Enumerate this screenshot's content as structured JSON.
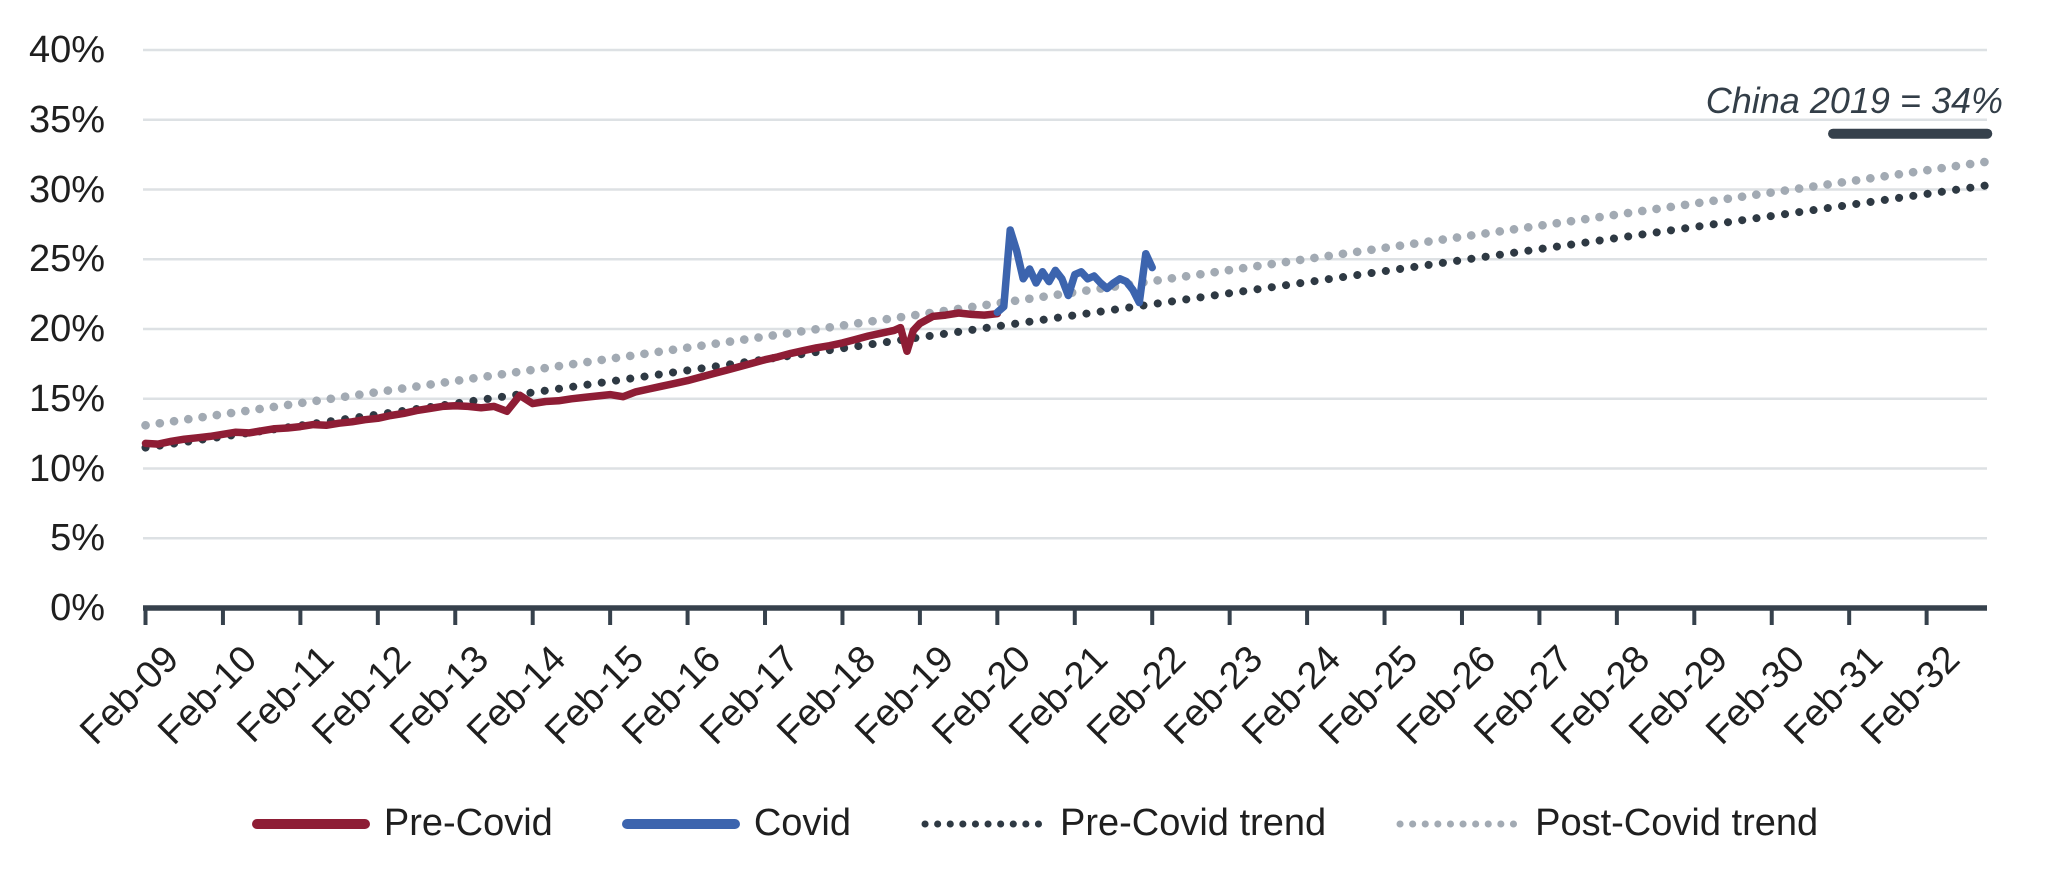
{
  "chart_data": {
    "type": "line",
    "title": "",
    "xlabel": "",
    "ylabel": "",
    "ylim": [
      0,
      40
    ],
    "grid": "horizontal",
    "legend_position": "bottom",
    "x_axis": {
      "unit": "months since Feb-2009 (tick every 12 months)",
      "tick_labels": [
        "Feb-09",
        "Feb-10",
        "Feb-11",
        "Feb-12",
        "Feb-13",
        "Feb-14",
        "Feb-15",
        "Feb-16",
        "Feb-17",
        "Feb-18",
        "Feb-19",
        "Feb-20",
        "Feb-21",
        "Feb-22",
        "Feb-23",
        "Feb-24",
        "Feb-25",
        "Feb-26",
        "Feb-27",
        "Feb-28",
        "Feb-29",
        "Feb-30",
        "Feb-31",
        "Feb-32"
      ]
    },
    "y_axis": {
      "tick_values": [
        0,
        5,
        10,
        15,
        20,
        25,
        30,
        35,
        40
      ],
      "tick_labels": [
        "0%",
        "5%",
        "10%",
        "15%",
        "20%",
        "25%",
        "30%",
        "35%",
        "40%"
      ]
    },
    "series": [
      {
        "name": "Pre-Covid",
        "style": "solid",
        "color": "#8E1D35",
        "width": 7.5,
        "points": [
          [
            0,
            11.8
          ],
          [
            2,
            11.75
          ],
          [
            4,
            11.95
          ],
          [
            6,
            12.1
          ],
          [
            8,
            12.2
          ],
          [
            10,
            12.3
          ],
          [
            12,
            12.45
          ],
          [
            14,
            12.6
          ],
          [
            16,
            12.55
          ],
          [
            18,
            12.7
          ],
          [
            20,
            12.85
          ],
          [
            22,
            12.9
          ],
          [
            24,
            13.0
          ],
          [
            26,
            13.15
          ],
          [
            28,
            13.1
          ],
          [
            30,
            13.25
          ],
          [
            32,
            13.35
          ],
          [
            34,
            13.5
          ],
          [
            36,
            13.6
          ],
          [
            38,
            13.8
          ],
          [
            40,
            13.95
          ],
          [
            42,
            14.15
          ],
          [
            44,
            14.3
          ],
          [
            46,
            14.45
          ],
          [
            48,
            14.5
          ],
          [
            50,
            14.45
          ],
          [
            52,
            14.35
          ],
          [
            54,
            14.45
          ],
          [
            56,
            14.1
          ],
          [
            58,
            15.25
          ],
          [
            60,
            14.65
          ],
          [
            62,
            14.8
          ],
          [
            64,
            14.85
          ],
          [
            66,
            15.0
          ],
          [
            68,
            15.1
          ],
          [
            70,
            15.2
          ],
          [
            72,
            15.3
          ],
          [
            74,
            15.15
          ],
          [
            76,
            15.5
          ],
          [
            78,
            15.7
          ],
          [
            80,
            15.9
          ],
          [
            82,
            16.1
          ],
          [
            84,
            16.3
          ],
          [
            86,
            16.55
          ],
          [
            88,
            16.8
          ],
          [
            90,
            17.05
          ],
          [
            92,
            17.3
          ],
          [
            94,
            17.55
          ],
          [
            96,
            17.8
          ],
          [
            98,
            18.0
          ],
          [
            100,
            18.25
          ],
          [
            102,
            18.45
          ],
          [
            104,
            18.65
          ],
          [
            106,
            18.8
          ],
          [
            108,
            19.0
          ],
          [
            110,
            19.25
          ],
          [
            112,
            19.5
          ],
          [
            114,
            19.7
          ],
          [
            116,
            19.9
          ],
          [
            117,
            20.1
          ],
          [
            118,
            18.4
          ],
          [
            119,
            19.9
          ],
          [
            120,
            20.4
          ],
          [
            122,
            20.9
          ],
          [
            124,
            21.0
          ],
          [
            126,
            21.15
          ],
          [
            128,
            21.05
          ],
          [
            130,
            21.0
          ],
          [
            132,
            21.1
          ]
        ]
      },
      {
        "name": "Covid",
        "style": "solid",
        "color": "#3C64AE",
        "width": 7.5,
        "points": [
          [
            132,
            21.2
          ],
          [
            133,
            21.6
          ],
          [
            134,
            27.1
          ],
          [
            135,
            25.6
          ],
          [
            136,
            23.6
          ],
          [
            137,
            24.3
          ],
          [
            138,
            23.3
          ],
          [
            139,
            24.1
          ],
          [
            140,
            23.4
          ],
          [
            141,
            24.2
          ],
          [
            142,
            23.6
          ],
          [
            143,
            22.4
          ],
          [
            144,
            23.9
          ],
          [
            145,
            24.1
          ],
          [
            146,
            23.6
          ],
          [
            147,
            23.8
          ],
          [
            148,
            23.3
          ],
          [
            149,
            22.9
          ],
          [
            150,
            23.3
          ],
          [
            151,
            23.6
          ],
          [
            152,
            23.4
          ],
          [
            153,
            22.8
          ],
          [
            154,
            21.9
          ],
          [
            155,
            25.4
          ],
          [
            156,
            24.4
          ]
        ]
      },
      {
        "name": "Pre-Covid trend",
        "style": "dotted",
        "color": "#2E3943",
        "width": 8,
        "points": [
          [
            0,
            11.5
          ],
          [
            285.4,
            30.3
          ]
        ]
      },
      {
        "name": "Post-Covid trend",
        "style": "dotted",
        "color": "#A2AAB3",
        "width": 8.6,
        "points": [
          [
            0,
            13.1
          ],
          [
            285.4,
            32.0
          ]
        ]
      }
    ],
    "annotation": {
      "text": "China 2019 = 34%",
      "marker_value": 34,
      "marker_month_start": 261.5,
      "marker_month_end": 285.4,
      "marker_color": "#36414C"
    },
    "colors": {
      "axis": "#36414C",
      "gridline": "#DDE1E4",
      "tick_label": "#1F1F1F",
      "annotation_text": "#333E48"
    }
  }
}
